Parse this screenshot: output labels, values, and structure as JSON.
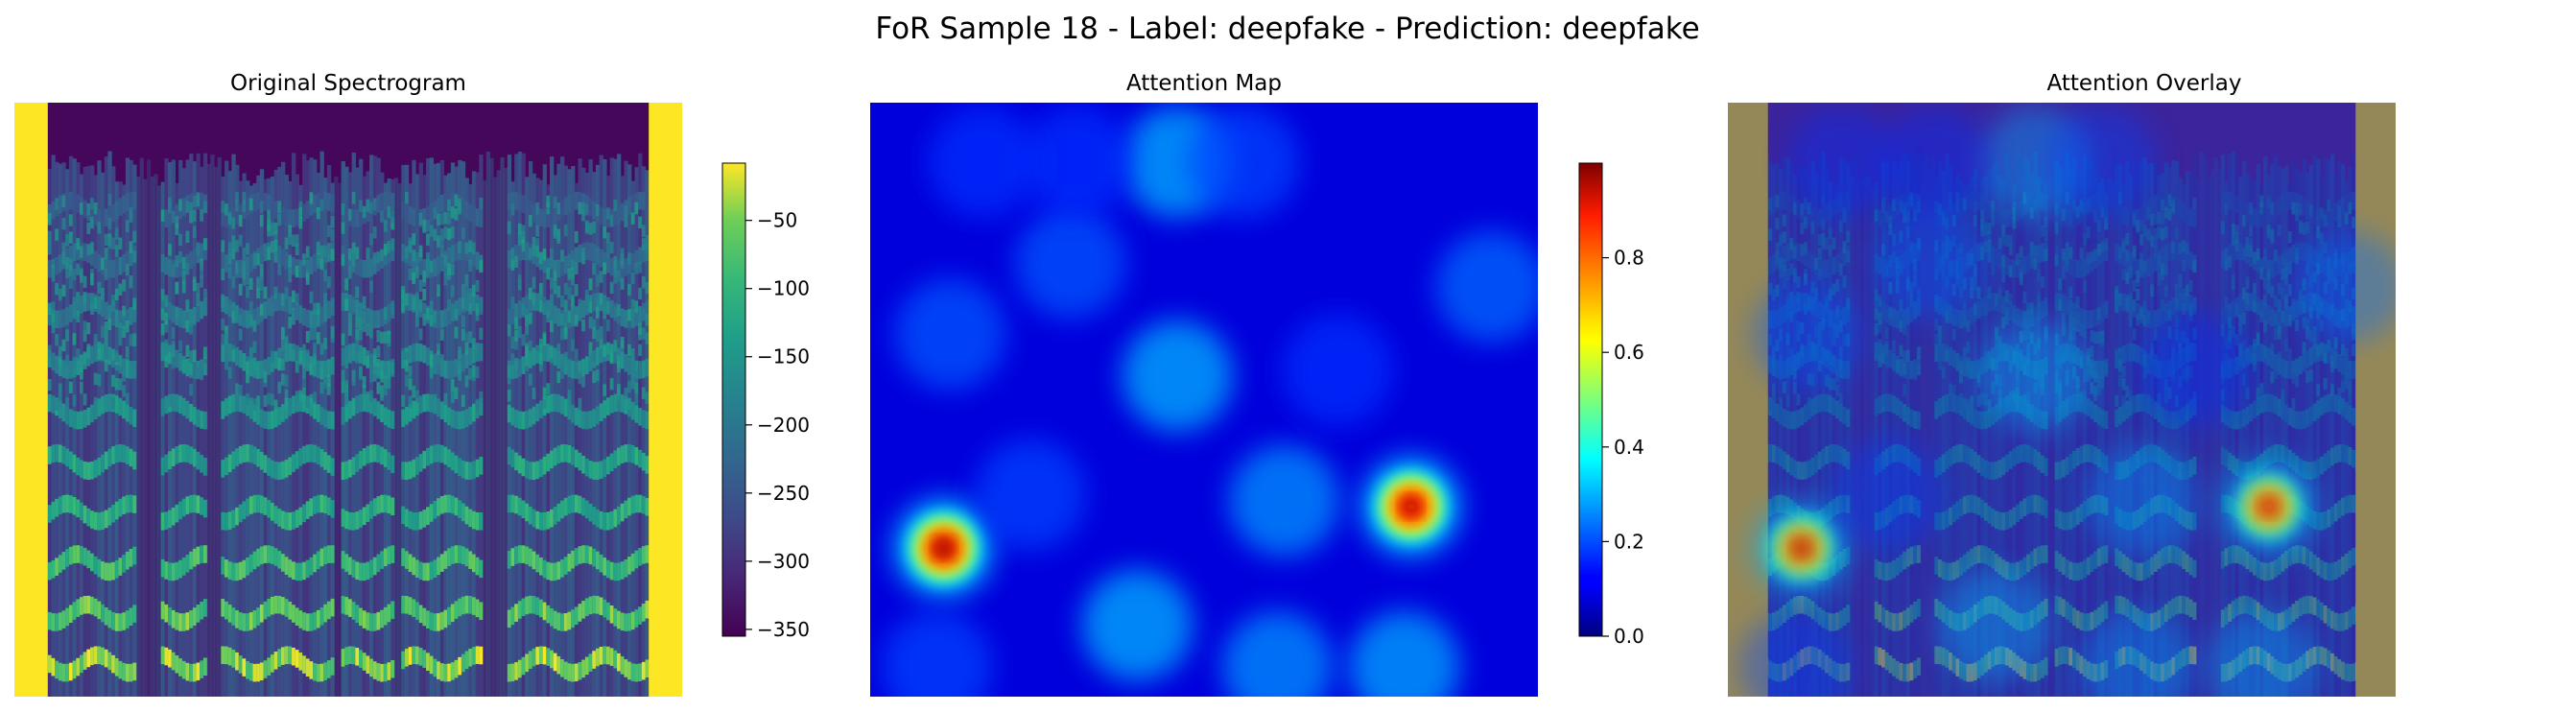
{
  "figure": {
    "suptitle": "FoR Sample 18 - Label: deepfake - Prediction: deepfake"
  },
  "panels": [
    {
      "title": "Original Spectrogram"
    },
    {
      "title": "Attention Map"
    },
    {
      "title": "Attention Overlay"
    }
  ],
  "chart_data": [
    {
      "type": "heatmap",
      "title": "Original Spectrogram",
      "colormap": "viridis",
      "axes_visible": false,
      "colorbar": {
        "ticks": [
          -50,
          -100,
          -150,
          -200,
          -250,
          -300,
          -350
        ],
        "tick_labels": [
          "−50",
          "−100",
          "−150",
          "−200",
          "−250",
          "−300",
          "−350"
        ],
        "range": [
          -355,
          -8
        ]
      },
      "padding_value_sides": -8,
      "speech_segments_fraction": [
        [
          0.05,
          0.18
        ],
        [
          0.22,
          0.29
        ],
        [
          0.31,
          0.38
        ],
        [
          0.38,
          0.48
        ],
        [
          0.49,
          0.57
        ],
        [
          0.58,
          0.7
        ],
        [
          0.74,
          0.8
        ],
        [
          0.8,
          0.86
        ],
        [
          0.86,
          0.95
        ]
      ]
    },
    {
      "type": "heatmap",
      "title": "Attention Map",
      "colormap": "jet",
      "axes_visible": false,
      "colorbar": {
        "ticks": [
          0.0,
          0.2,
          0.4,
          0.6,
          0.8
        ],
        "tick_labels": [
          "0.0",
          "0.2",
          "0.4",
          "0.6",
          "0.8"
        ],
        "range": [
          0,
          1
        ]
      },
      "hotspots": [
        {
          "x": 0.11,
          "y": 0.75,
          "value": 0.99
        },
        {
          "x": 0.81,
          "y": 0.68,
          "value": 0.97
        },
        {
          "x": 0.46,
          "y": 0.1,
          "value": 0.35
        },
        {
          "x": 0.46,
          "y": 0.46,
          "value": 0.32
        },
        {
          "x": 0.4,
          "y": 0.88,
          "value": 0.28
        },
        {
          "x": 0.62,
          "y": 0.67,
          "value": 0.22
        },
        {
          "x": 0.8,
          "y": 0.95,
          "value": 0.24
        },
        {
          "x": 0.61,
          "y": 0.95,
          "value": 0.22
        },
        {
          "x": 0.93,
          "y": 0.31,
          "value": 0.18
        },
        {
          "x": 0.12,
          "y": 0.39,
          "value": 0.16
        },
        {
          "x": 0.3,
          "y": 0.27,
          "value": 0.16
        },
        {
          "x": 0.56,
          "y": 0.1,
          "value": 0.14
        },
        {
          "x": 0.31,
          "y": 0.1,
          "value": 0.12
        },
        {
          "x": 0.17,
          "y": 0.1,
          "value": 0.12
        },
        {
          "x": 0.24,
          "y": 0.66,
          "value": 0.14
        },
        {
          "x": 0.7,
          "y": 0.45,
          "value": 0.12
        },
        {
          "x": 0.1,
          "y": 0.95,
          "value": 0.14
        }
      ]
    },
    {
      "type": "heatmap",
      "title": "Attention Overlay",
      "description_layers": [
        "spectrogram",
        "attention(jet, alpha)"
      ],
      "axes_visible": false
    }
  ]
}
